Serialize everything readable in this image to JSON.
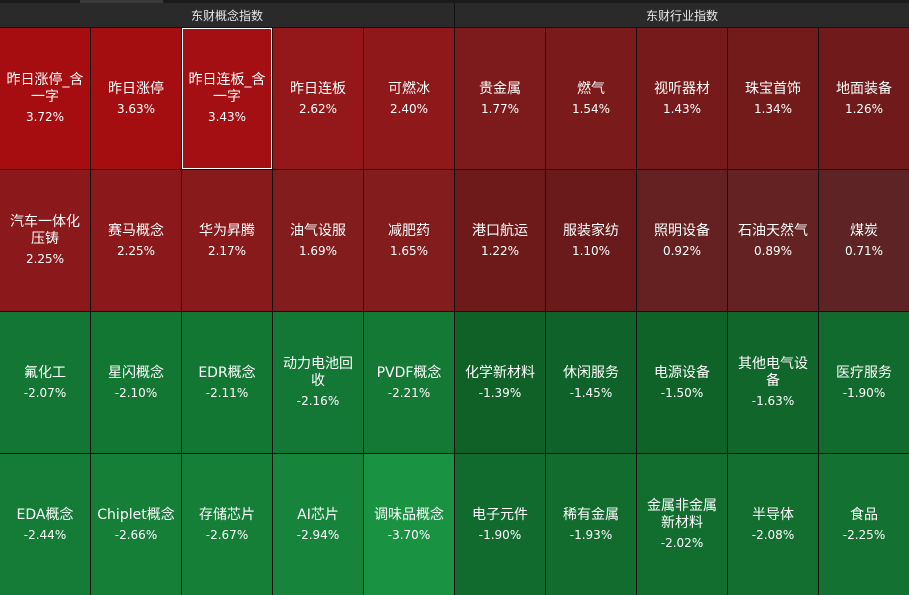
{
  "colors": {
    "bg": "#111111",
    "header": "#2a2a2a",
    "selected_outline": "#ffffff"
  },
  "left_panel": {
    "title": "东财概念指数",
    "tiles": [
      {
        "name": "昨日涨停_含一字",
        "pct": "3.72%",
        "color": "#a50d10"
      },
      {
        "name": "昨日涨停",
        "pct": "3.63%",
        "color": "#a50e11"
      },
      {
        "name": "昨日连板_含一字",
        "pct": "3.43%",
        "color": "#a30f12",
        "selected": true
      },
      {
        "name": "昨日连板",
        "pct": "2.62%",
        "color": "#941719"
      },
      {
        "name": "可燃冰",
        "pct": "2.40%",
        "color": "#8e181a"
      },
      {
        "name": "汽车一体化压铸",
        "pct": "2.25%",
        "color": "#8b191b"
      },
      {
        "name": "赛马概念",
        "pct": "2.25%",
        "color": "#8b191b"
      },
      {
        "name": "华为昇腾",
        "pct": "2.17%",
        "color": "#891a1c"
      },
      {
        "name": "油气设服",
        "pct": "1.69%",
        "color": "#831c1d"
      },
      {
        "name": "减肥药",
        "pct": "1.65%",
        "color": "#821c1d"
      },
      {
        "name": "氟化工",
        "pct": "-2.07%",
        "color": "#137634"
      },
      {
        "name": "星闪概念",
        "pct": "-2.10%",
        "color": "#137734"
      },
      {
        "name": "EDR概念",
        "pct": "-2.11%",
        "color": "#137734"
      },
      {
        "name": "动力电池回收",
        "pct": "-2.16%",
        "color": "#137835"
      },
      {
        "name": "PVDF概念",
        "pct": "-2.21%",
        "color": "#137935"
      },
      {
        "name": "EDA概念",
        "pct": "-2.44%",
        "color": "#147c37"
      },
      {
        "name": "Chiplet概念",
        "pct": "-2.66%",
        "color": "#157f38"
      },
      {
        "name": "存储芯片",
        "pct": "-2.67%",
        "color": "#157f38"
      },
      {
        "name": "AI芯片",
        "pct": "-2.94%",
        "color": "#16853b"
      },
      {
        "name": "调味品概念",
        "pct": "-3.70%",
        "color": "#199242"
      }
    ]
  },
  "right_panel": {
    "title": "东财行业指数",
    "tiles": [
      {
        "name": "贵金属",
        "pct": "1.77%",
        "color": "#7d1b1c"
      },
      {
        "name": "燃气",
        "pct": "1.54%",
        "color": "#7a1a1b"
      },
      {
        "name": "视听器材",
        "pct": "1.43%",
        "color": "#761a1b"
      },
      {
        "name": "珠宝首饰",
        "pct": "1.34%",
        "color": "#731a1b"
      },
      {
        "name": "地面装备",
        "pct": "1.26%",
        "color": "#711a1b"
      },
      {
        "name": "港口航运",
        "pct": "1.22%",
        "color": "#6e191a"
      },
      {
        "name": "服装家纺",
        "pct": "1.10%",
        "color": "#6b1a1b"
      },
      {
        "name": "照明设备",
        "pct": "0.92%",
        "color": "#652122"
      },
      {
        "name": "石油天然气",
        "pct": "0.89%",
        "color": "#642223"
      },
      {
        "name": "煤炭",
        "pct": "0.71%",
        "color": "#5e2425"
      },
      {
        "name": "化学新材料",
        "pct": "-1.39%",
        "color": "#0f6128"
      },
      {
        "name": "休闲服务",
        "pct": "-1.45%",
        "color": "#0f6229"
      },
      {
        "name": "电源设备",
        "pct": "-1.50%",
        "color": "#0f6329"
      },
      {
        "name": "其他电气设备",
        "pct": "-1.63%",
        "color": "#10662b"
      },
      {
        "name": "医疗服务",
        "pct": "-1.90%",
        "color": "#116b2e"
      },
      {
        "name": "电子元件",
        "pct": "-1.90%",
        "color": "#116b2e"
      },
      {
        "name": "稀有金属",
        "pct": "-1.93%",
        "color": "#116c2e"
      },
      {
        "name": "金属非金属新材料",
        "pct": "-2.02%",
        "color": "#126e2f"
      },
      {
        "name": "半导体",
        "pct": "-2.08%",
        "color": "#126f30"
      },
      {
        "name": "食品",
        "pct": "-2.25%",
        "color": "#137231"
      }
    ]
  }
}
